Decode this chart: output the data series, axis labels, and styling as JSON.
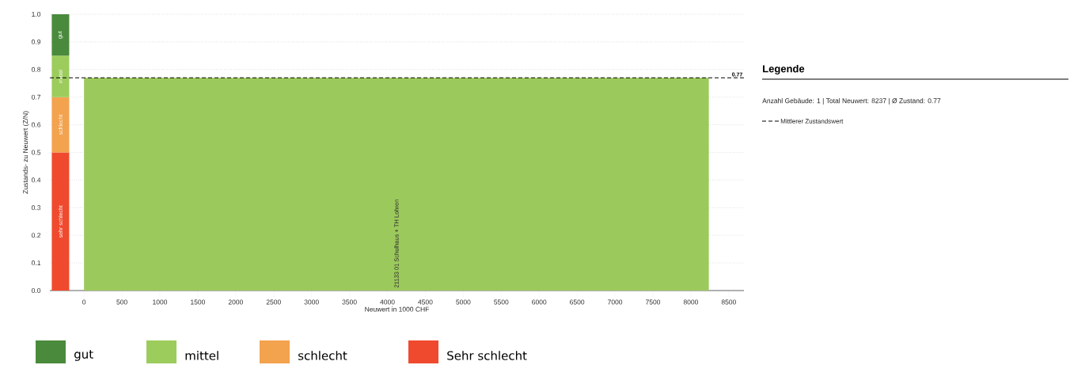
{
  "chart_data": {
    "type": "bar",
    "xlabel": "Neuwert in 1000 CHF",
    "ylabel": "Zustands- zu Neuwert (Z/N)",
    "legend_title": "Legende",
    "xlim": [
      -450,
      8700
    ],
    "ylim": [
      0,
      1
    ],
    "xticks": [
      0,
      500,
      1000,
      1500,
      2000,
      2500,
      3000,
      3500,
      4000,
      4500,
      5000,
      5500,
      6000,
      6500,
      7000,
      7500,
      8000,
      8500
    ],
    "yticks": [
      {
        "value": 0,
        "label": "0.0"
      },
      0.1,
      0.2,
      0.3,
      0.4,
      0.5,
      0.6,
      0.7,
      0.8,
      0.9,
      {
        "value": 1,
        "label": "1.0"
      }
    ],
    "grid": "y",
    "legend": "bottom",
    "series": [
      {
        "name": "Sehr schlecht",
        "color": "#f04a2e",
        "x": [
          -310
        ],
        "base": [
          0
        ],
        "values": [
          0.5
        ],
        "value_labels": [
          "sehr schlecht"
        ]
      },
      {
        "name": "schlecht",
        "color": "#f3a24e",
        "x": [
          -310
        ],
        "base": [
          0.5
        ],
        "values": [
          0.2
        ],
        "value_labels": [
          "schlecht"
        ]
      },
      {
        "name": "mittel",
        "color": "#9ccc5c",
        "x": [
          -310
        ],
        "base": [
          0.7
        ],
        "values": [
          0.15
        ],
        "value_labels": [
          "mittel"
        ]
      },
      {
        "name": "gut",
        "color": "#4a8a3c",
        "x": [
          -310
        ],
        "base": [
          0.85
        ],
        "values": [
          0.15
        ],
        "value_labels": [
          "gut"
        ]
      },
      {
        "type": "area",
        "name": "21133 01 Schulhaus + TH Lohren",
        "color": "#9cc95c",
        "x": [
          0,
          8237
        ],
        "values": [
          0.77,
          0.77
        ]
      }
    ],
    "ref_lines": [
      {
        "axis": "y",
        "value": 0.77,
        "label": "Mittlerer Zustandswert",
        "line_style": "dashed",
        "color": "#000000"
      }
    ],
    "annotations": [
      "Anzahl Gebäude: 1 | Total Neuwert: 8237 | Ø Zustand: 0.77",
      {
        "text": "0.77",
        "x": 8700,
        "y": 0.77
      }
    ]
  }
}
